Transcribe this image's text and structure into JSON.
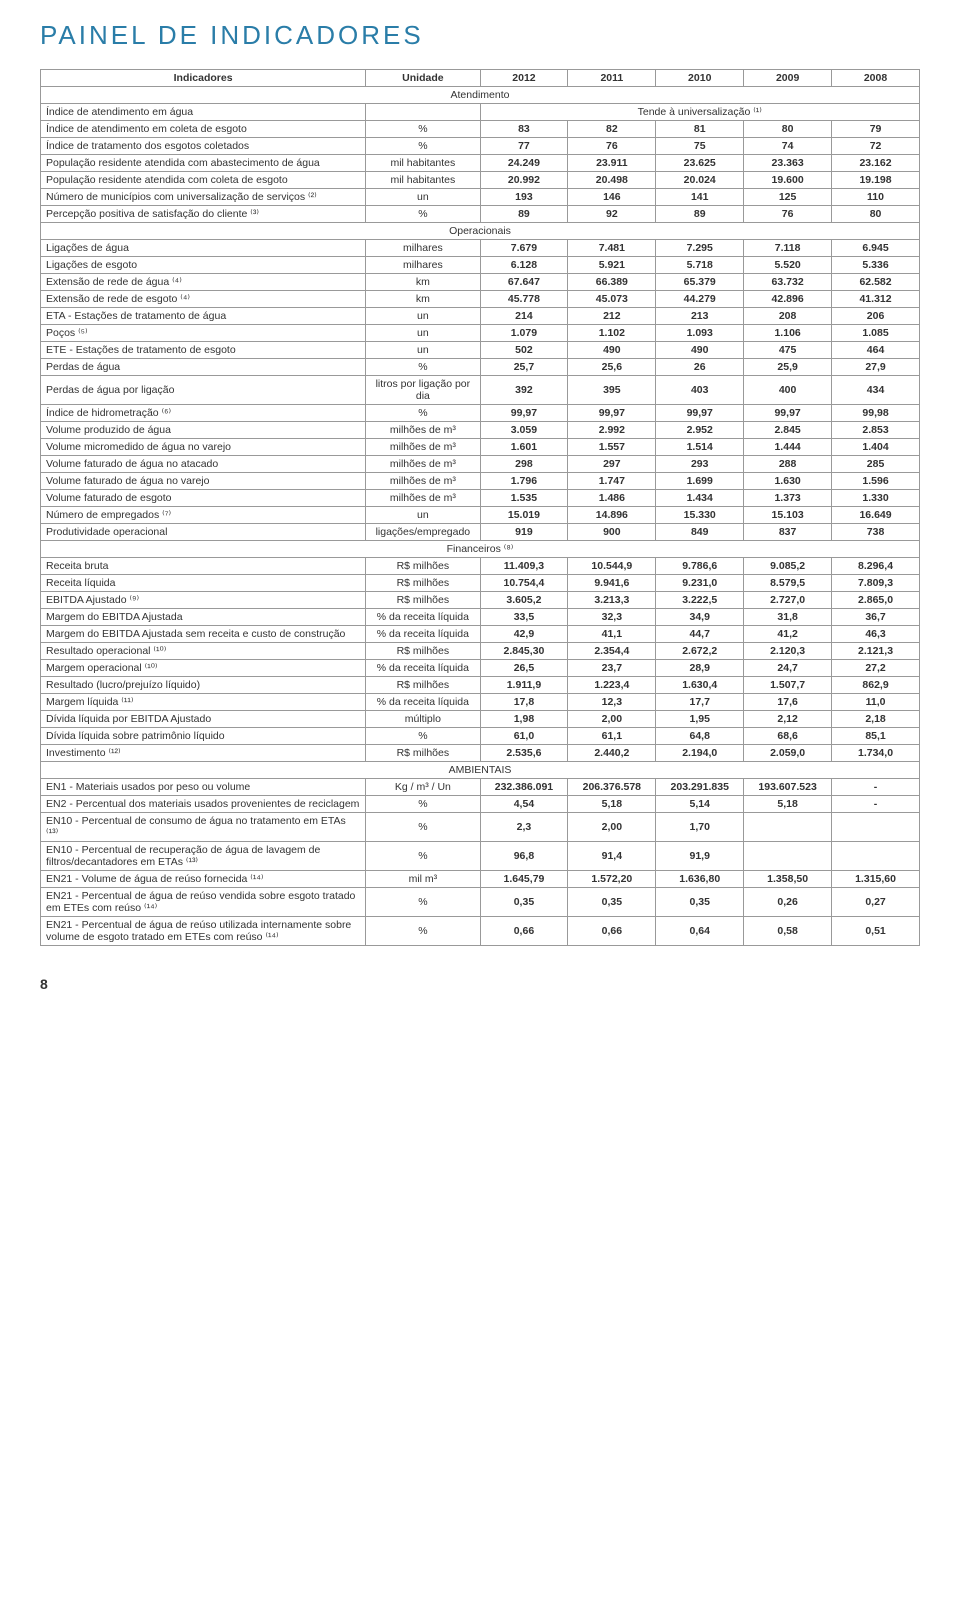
{
  "title": "PAINEL DE INDICADORES",
  "pageNumber": "8",
  "headers": [
    "Indicadores",
    "Unidade",
    "2012",
    "2011",
    "2010",
    "2009",
    "2008"
  ],
  "sections": [
    {
      "name": "Atendimento",
      "rows": [
        {
          "lbl": "Índice de atendimento em água",
          "unit": "",
          "vals": [
            "Tende à universalização ⁽¹⁾"
          ],
          "span": true
        },
        {
          "lbl": "Índice de atendimento em coleta de esgoto",
          "unit": "%",
          "vals": [
            "83",
            "82",
            "81",
            "80",
            "79"
          ]
        },
        {
          "lbl": "Índice de tratamento dos esgotos coletados",
          "unit": "%",
          "vals": [
            "77",
            "76",
            "75",
            "74",
            "72"
          ]
        },
        {
          "lbl": "População residente atendida com abastecimento de água",
          "unit": "mil habitantes",
          "vals": [
            "24.249",
            "23.911",
            "23.625",
            "23.363",
            "23.162"
          ]
        },
        {
          "lbl": "População residente atendida com coleta de esgoto",
          "unit": "mil habitantes",
          "vals": [
            "20.992",
            "20.498",
            "20.024",
            "19.600",
            "19.198"
          ]
        },
        {
          "lbl": "Número de municípios com universalização de serviços ⁽²⁾",
          "unit": "un",
          "vals": [
            "193",
            "146",
            "141",
            "125",
            "110"
          ]
        },
        {
          "lbl": "Percepção positiva de satisfação do cliente ⁽³⁾",
          "unit": "%",
          "vals": [
            "89",
            "92",
            "89",
            "76",
            "80"
          ]
        }
      ]
    },
    {
      "name": "Operacionais",
      "rows": [
        {
          "lbl": "Ligações de água",
          "unit": "milhares",
          "vals": [
            "7.679",
            "7.481",
            "7.295",
            "7.118",
            "6.945"
          ]
        },
        {
          "lbl": "Ligações de esgoto",
          "unit": "milhares",
          "vals": [
            "6.128",
            "5.921",
            "5.718",
            "5.520",
            "5.336"
          ]
        },
        {
          "lbl": "Extensão de rede de água ⁽⁴⁾",
          "unit": "km",
          "vals": [
            "67.647",
            "66.389",
            "65.379",
            "63.732",
            "62.582"
          ]
        },
        {
          "lbl": "Extensão de rede de esgoto ⁽⁴⁾",
          "unit": "km",
          "vals": [
            "45.778",
            "45.073",
            "44.279",
            "42.896",
            "41.312"
          ]
        },
        {
          "lbl": "ETA - Estações de tratamento de água",
          "unit": "un",
          "vals": [
            "214",
            "212",
            "213",
            "208",
            "206"
          ]
        },
        {
          "lbl": "Poços ⁽⁵⁾",
          "unit": "un",
          "vals": [
            "1.079",
            "1.102",
            "1.093",
            "1.106",
            "1.085"
          ]
        },
        {
          "lbl": "ETE - Estações de tratamento de esgoto",
          "unit": "un",
          "vals": [
            "502",
            "490",
            "490",
            "475",
            "464"
          ]
        },
        {
          "lbl": "Perdas de água",
          "unit": "%",
          "vals": [
            "25,7",
            "25,6",
            "26",
            "25,9",
            "27,9"
          ]
        },
        {
          "lbl": "Perdas de água por ligação",
          "unit": "litros por ligação por dia",
          "vals": [
            "392",
            "395",
            "403",
            "400",
            "434"
          ]
        },
        {
          "lbl": "Índice de hidrometração ⁽⁶⁾",
          "unit": "%",
          "vals": [
            "99,97",
            "99,97",
            "99,97",
            "99,97",
            "99,98"
          ]
        },
        {
          "lbl": "Volume produzido de água",
          "unit": "milhões de m³",
          "vals": [
            "3.059",
            "2.992",
            "2.952",
            "2.845",
            "2.853"
          ]
        },
        {
          "lbl": "Volume micromedido de água no varejo",
          "unit": "milhões de m³",
          "vals": [
            "1.601",
            "1.557",
            "1.514",
            "1.444",
            "1.404"
          ]
        },
        {
          "lbl": "Volume faturado de água no atacado",
          "unit": "milhões de m³",
          "vals": [
            "298",
            "297",
            "293",
            "288",
            "285"
          ]
        },
        {
          "lbl": "Volume faturado de água no varejo",
          "unit": "milhões de m³",
          "vals": [
            "1.796",
            "1.747",
            "1.699",
            "1.630",
            "1.596"
          ]
        },
        {
          "lbl": "Volume faturado de esgoto",
          "unit": "milhões de m³",
          "vals": [
            "1.535",
            "1.486",
            "1.434",
            "1.373",
            "1.330"
          ]
        },
        {
          "lbl": "Número de empregados ⁽⁷⁾",
          "unit": "un",
          "vals": [
            "15.019",
            "14.896",
            "15.330",
            "15.103",
            "16.649"
          ]
        },
        {
          "lbl": "Produtividade operacional",
          "unit": "ligações/empregado",
          "vals": [
            "919",
            "900",
            "849",
            "837",
            "738"
          ]
        }
      ]
    },
    {
      "name": "Financeiros ⁽⁸⁾",
      "rows": [
        {
          "lbl": "Receita bruta",
          "unit": "R$ milhões",
          "vals": [
            "11.409,3",
            "10.544,9",
            "9.786,6",
            "9.085,2",
            "8.296,4"
          ]
        },
        {
          "lbl": "Receita líquida",
          "unit": "R$ milhões",
          "vals": [
            "10.754,4",
            "9.941,6",
            "9.231,0",
            "8.579,5",
            "7.809,3"
          ]
        },
        {
          "lbl": "EBITDA Ajustado ⁽⁹⁾",
          "unit": "R$ milhões",
          "vals": [
            "3.605,2",
            "3.213,3",
            "3.222,5",
            "2.727,0",
            "2.865,0"
          ]
        },
        {
          "lbl": "Margem do EBITDA Ajustada",
          "unit": "% da receita líquida",
          "vals": [
            "33,5",
            "32,3",
            "34,9",
            "31,8",
            "36,7"
          ]
        },
        {
          "lbl": "Margem do EBITDA Ajustada sem receita e custo de construção",
          "unit": "% da receita líquida",
          "vals": [
            "42,9",
            "41,1",
            "44,7",
            "41,2",
            "46,3"
          ]
        },
        {
          "lbl": "Resultado operacional ⁽¹⁰⁾",
          "unit": "R$ milhões",
          "vals": [
            "2.845,30",
            "2.354,4",
            "2.672,2",
            "2.120,3",
            "2.121,3"
          ]
        },
        {
          "lbl": "Margem operacional ⁽¹⁰⁾",
          "unit": "% da receita líquida",
          "vals": [
            "26,5",
            "23,7",
            "28,9",
            "24,7",
            "27,2"
          ]
        },
        {
          "lbl": "Resultado (lucro/prejuízo líquido)",
          "unit": "R$ milhões",
          "vals": [
            "1.911,9",
            "1.223,4",
            "1.630,4",
            "1.507,7",
            "862,9"
          ]
        },
        {
          "lbl": "Margem líquida ⁽¹¹⁾",
          "unit": "% da receita líquida",
          "vals": [
            "17,8",
            "12,3",
            "17,7",
            "17,6",
            "11,0"
          ]
        },
        {
          "lbl": "Dívida líquida por EBITDA Ajustado",
          "unit": "múltiplo",
          "vals": [
            "1,98",
            "2,00",
            "1,95",
            "2,12",
            "2,18"
          ]
        },
        {
          "lbl": "Dívida líquida sobre patrimônio líquido",
          "unit": "%",
          "vals": [
            "61,0",
            "61,1",
            "64,8",
            "68,6",
            "85,1"
          ]
        },
        {
          "lbl": "Investimento ⁽¹²⁾",
          "unit": "R$ milhões",
          "vals": [
            "2.535,6",
            "2.440,2",
            "2.194,0",
            "2.059,0",
            "1.734,0"
          ]
        }
      ]
    },
    {
      "name": "AMBIENTAIS",
      "rows": [
        {
          "lbl": "EN1 - Materiais usados por peso ou volume",
          "unit": "Kg / m³ / Un",
          "vals": [
            "232.386.091",
            "206.376.578",
            "203.291.835",
            "193.607.523",
            "-"
          ]
        },
        {
          "lbl": "EN2 - Percentual dos materiais usados provenientes de reciclagem",
          "unit": "%",
          "vals": [
            "4,54",
            "5,18",
            "5,14",
            "5,18",
            "-"
          ]
        },
        {
          "lbl": "EN10 - Percentual de consumo de água no tratamento em ETAs ⁽¹³⁾",
          "unit": "%",
          "vals": [
            "2,3",
            "2,00",
            "1,70",
            "",
            ""
          ]
        },
        {
          "lbl": "EN10 - Percentual de recuperação de água de lavagem de filtros/decantadores em ETAs ⁽¹³⁾",
          "unit": "%",
          "vals": [
            "96,8",
            "91,4",
            "91,9",
            "",
            ""
          ]
        },
        {
          "lbl": "EN21 - Volume de água de reúso fornecida ⁽¹⁴⁾",
          "unit": "mil m³",
          "vals": [
            "1.645,79",
            "1.572,20",
            "1.636,80",
            "1.358,50",
            "1.315,60"
          ]
        },
        {
          "lbl": "EN21 - Percentual de água de reúso vendida sobre esgoto tratado em ETEs com reúso ⁽¹⁴⁾",
          "unit": "%",
          "vals": [
            "0,35",
            "0,35",
            "0,35",
            "0,26",
            "0,27"
          ]
        },
        {
          "lbl": "EN21 - Percentual de água de reúso utilizada internamente sobre volume de esgoto tratado em ETEs com reúso ⁽¹⁴⁾",
          "unit": "%",
          "vals": [
            "0,66",
            "0,66",
            "0,64",
            "0,58",
            "0,51"
          ]
        }
      ]
    }
  ]
}
